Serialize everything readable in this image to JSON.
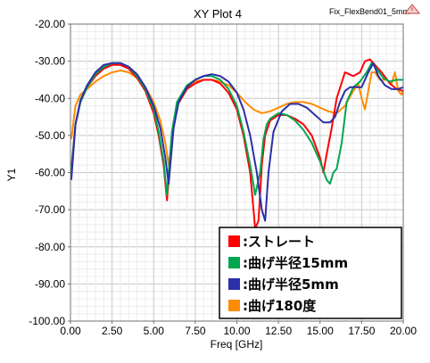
{
  "chart_data": {
    "type": "line",
    "title": "XY Plot 4",
    "subtitle": "Fix_FlexBend01_5mm",
    "xlabel": "Freq [GHz]",
    "ylabel": "Y1",
    "xlim": [
      0,
      20
    ],
    "ylim": [
      -100,
      -20
    ],
    "xticks": [
      "0.00",
      "2.50",
      "5.00",
      "7.50",
      "10.00",
      "12.50",
      "15.00",
      "17.50",
      "20.00"
    ],
    "yticks": [
      "-20.00",
      "-30.00",
      "-40.00",
      "-50.00",
      "-60.00",
      "-70.00",
      "-80.00",
      "-90.00",
      "-100.00"
    ],
    "grid": true,
    "legend_position": "bottom-right",
    "series": [
      {
        "name": ":ストレート",
        "color": "#ff0000",
        "x": [
          0.05,
          0.3,
          0.6,
          1,
          1.5,
          2,
          2.5,
          3,
          3.5,
          4,
          4.5,
          5,
          5.3,
          5.6,
          5.8,
          5.9,
          6.1,
          6.4,
          7,
          7.5,
          8,
          8.5,
          9,
          9.5,
          10,
          10.4,
          10.8,
          11.1,
          11.3,
          11.5,
          11.7,
          12,
          12.5,
          13,
          13.5,
          14,
          14.5,
          15,
          15.2,
          15.4,
          15.7,
          16,
          16.5,
          17,
          17.4,
          17.7,
          18,
          18.3,
          18.7,
          19.2,
          19.6,
          20
        ],
        "y": [
          -59,
          -47,
          -41,
          -37,
          -34,
          -32,
          -31,
          -31,
          -32,
          -34.5,
          -38,
          -44,
          -50,
          -58,
          -67.5,
          -62,
          -50,
          -42,
          -37.5,
          -36,
          -35,
          -35,
          -36,
          -38.5,
          -43,
          -50,
          -60,
          -75,
          -73,
          -58,
          -50,
          -46,
          -44.5,
          -44.5,
          -45.5,
          -47,
          -50,
          -56,
          -60,
          -55,
          -48,
          -40,
          -33,
          -34,
          -33,
          -30,
          -29.5,
          -31,
          -33,
          -36,
          -37.5,
          -38
        ]
      },
      {
        "name": ":曲げ半径15mm",
        "color": "#00a650",
        "x": [
          0.05,
          0.3,
          0.6,
          1,
          1.5,
          2,
          2.5,
          3,
          3.5,
          4,
          4.5,
          5,
          5.3,
          5.6,
          5.8,
          5.9,
          6.1,
          6.4,
          7,
          7.5,
          8,
          8.5,
          9,
          9.5,
          10,
          10.4,
          10.8,
          11.1,
          11.4,
          11.6,
          11.8,
          12,
          12.5,
          13,
          13.5,
          14,
          14.5,
          15,
          15.4,
          15.6,
          15.8,
          16,
          16.3,
          16.6,
          17,
          17.4,
          17.8,
          18.1,
          18.4,
          18.8,
          19.2,
          19.6,
          20
        ],
        "y": [
          -60,
          -47,
          -41,
          -37,
          -33.5,
          -31.5,
          -30.5,
          -30.5,
          -31.5,
          -34,
          -37.5,
          -43,
          -49,
          -57,
          -66,
          -60,
          -49,
          -41,
          -36.5,
          -35,
          -34,
          -34,
          -35,
          -37.5,
          -42,
          -49,
          -58,
          -66,
          -60,
          -51,
          -47,
          -45.5,
          -44,
          -44.5,
          -46,
          -48.5,
          -52,
          -57,
          -62,
          -63,
          -60,
          -59,
          -52,
          -41,
          -37,
          -35.5,
          -33,
          -30.5,
          -32,
          -34.5,
          -35.5,
          -35,
          -35
        ]
      },
      {
        "name": ":曲げ半径5mm",
        "color": "#2b2fa8",
        "x": [
          0.05,
          0.3,
          0.6,
          1,
          1.5,
          2,
          2.5,
          3,
          3.5,
          4,
          4.5,
          5,
          5.4,
          5.7,
          5.9,
          6.0,
          6.2,
          6.5,
          7,
          7.5,
          8,
          8.5,
          9,
          9.5,
          10,
          10.4,
          10.8,
          11.2,
          11.5,
          11.7,
          11.9,
          12.2,
          12.7,
          13.2,
          13.7,
          14.2,
          14.7,
          15.2,
          15.6,
          15.9,
          16.2,
          16.5,
          16.8,
          17.2,
          17.5,
          17.9,
          18.2,
          18.5,
          18.9,
          19.3,
          19.7,
          20
        ],
        "y": [
          -62,
          -47,
          -40.5,
          -36.5,
          -33,
          -31,
          -30.5,
          -30.5,
          -31.5,
          -33.5,
          -37,
          -42,
          -48,
          -56,
          -63,
          -58,
          -48,
          -41,
          -37,
          -35,
          -34,
          -33.5,
          -34,
          -35.5,
          -38.5,
          -43,
          -50,
          -60,
          -70,
          -73,
          -60,
          -49,
          -43.5,
          -41.5,
          -41.5,
          -42.5,
          -44.5,
          -46.5,
          -46.5,
          -45,
          -41,
          -38,
          -37,
          -37,
          -37,
          -33,
          -30.5,
          -34,
          -36.5,
          -37.5,
          -37.5,
          -37
        ]
      },
      {
        "name": ":曲げ180度",
        "color": "#ff8c00",
        "x": [
          0.05,
          0.3,
          0.6,
          1,
          1.5,
          2,
          2.5,
          3,
          3.5,
          4,
          4.5,
          5,
          5.4,
          5.7,
          5.9,
          6.0,
          6.2,
          6.5,
          7,
          7.5,
          8,
          8.5,
          9,
          9.5,
          10,
          10.5,
          11,
          11.5,
          12,
          12.5,
          13,
          13.5,
          14,
          14.5,
          15,
          15.5,
          16,
          16.5,
          17,
          17.3,
          17.5,
          17.7,
          17.9,
          18.1,
          18.3,
          18.6,
          19,
          19.3,
          19.5,
          19.7,
          19.9,
          20
        ],
        "y": [
          -51,
          -42,
          -39,
          -37.5,
          -35.5,
          -34,
          -33,
          -32.5,
          -33,
          -34.5,
          -37,
          -41,
          -46,
          -52,
          -58,
          -55,
          -47,
          -41,
          -37,
          -35.5,
          -35,
          -35,
          -35.5,
          -36.5,
          -38.5,
          -41,
          -43,
          -44,
          -43.5,
          -42.5,
          -41.5,
          -41,
          -41,
          -41.5,
          -42.5,
          -43.5,
          -44,
          -42,
          -38,
          -36,
          -40,
          -43,
          -38,
          -33,
          -33,
          -35,
          -35,
          -36,
          -33,
          -38,
          -39,
          -38
        ]
      }
    ]
  }
}
